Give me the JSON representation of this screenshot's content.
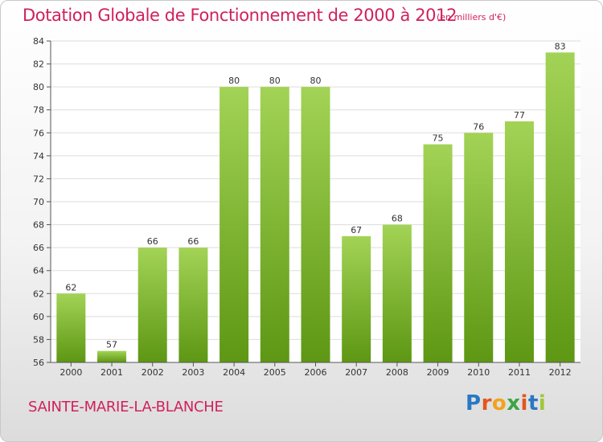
{
  "title": "Dotation Globale de Fonctionnement de 2000 à 2012",
  "subtitle": "(en milliers d'€)",
  "commune": "SAINTE-MARIE-LA-BLANCHE",
  "logo": {
    "letters": [
      "P",
      "r",
      "o",
      "x",
      "i",
      "t",
      "i"
    ],
    "colors": [
      "#2a78c2",
      "#e3561f",
      "#f2a31b",
      "#3aa545",
      "#e3561f",
      "#2a78c2",
      "#9fc83c"
    ]
  },
  "colors": {
    "bar_top": "#a3d356",
    "bar_bottom": "#5d9713",
    "title": "#d0215c",
    "grid": "#dddddd"
  },
  "chart_data": {
    "type": "bar",
    "categories": [
      "2000",
      "2001",
      "2002",
      "2003",
      "2004",
      "2005",
      "2006",
      "2007",
      "2008",
      "2009",
      "2010",
      "2011",
      "2012"
    ],
    "values": [
      62,
      57,
      66,
      66,
      80,
      80,
      80,
      67,
      68,
      75,
      76,
      77,
      83
    ],
    "ylim": [
      56,
      84
    ],
    "yticks": [
      56,
      58,
      60,
      62,
      64,
      66,
      68,
      70,
      72,
      74,
      76,
      78,
      80,
      82,
      84
    ],
    "grid": true
  }
}
